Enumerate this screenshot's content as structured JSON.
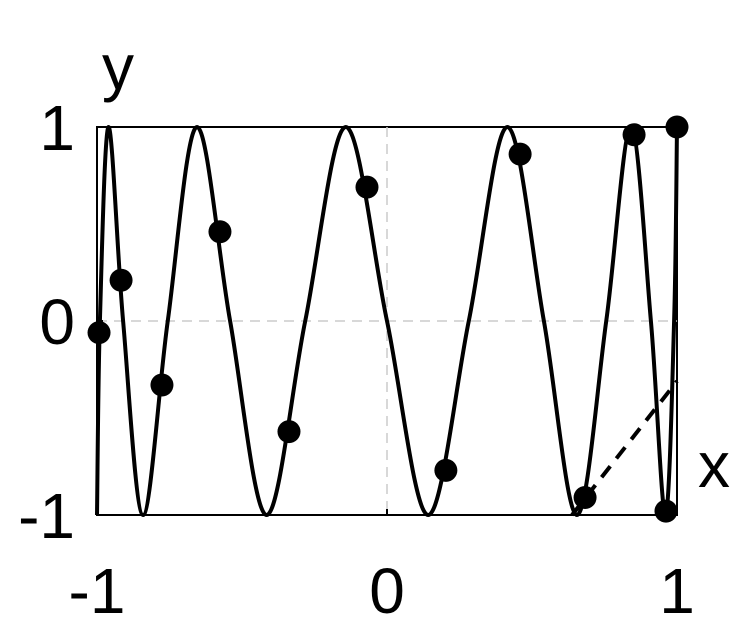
{
  "chart_data": {
    "type": "line",
    "xlabel": "x",
    "ylabel": "y",
    "xlim": [
      -1,
      1
    ],
    "ylim": [
      -1,
      1
    ],
    "xticks": [
      -1,
      0,
      1
    ],
    "yticks": [
      -1,
      0,
      1
    ],
    "grid": true,
    "series": [
      {
        "type": "line",
        "style": "solid",
        "color": "#000000",
        "x": [
          -1,
          -0.99,
          -0.96,
          -0.91,
          -0.841,
          -0.756,
          -0.655,
          -0.541,
          -0.415,
          -0.282,
          -0.142,
          0,
          0.142,
          0.282,
          0.415,
          0.541,
          0.655,
          0.756,
          0.841,
          0.91,
          0.96,
          0.99,
          1
        ],
        "values": [
          -1,
          0,
          1,
          0,
          -1,
          0,
          1,
          0,
          -1,
          0,
          1,
          0,
          -1,
          0,
          1,
          0,
          -1,
          0,
          1,
          0,
          -1,
          0,
          1
        ]
      },
      {
        "type": "line",
        "style": "dashed",
        "color": "#000000",
        "x": [
          0.638,
          1
        ],
        "values": [
          -1,
          -0.31
        ]
      },
      {
        "type": "scatter",
        "color": "#000000",
        "x": [
          -0.993,
          -0.917,
          -0.776,
          -0.576,
          -0.338,
          -0.069,
          0.203,
          0.459,
          0.683,
          0.852,
          0.962,
          1.0
        ],
        "values": [
          -0.06,
          0.21,
          -0.33,
          0.46,
          -0.57,
          0.69,
          -0.77,
          0.86,
          -0.91,
          0.96,
          -0.98,
          1.0
        ]
      }
    ]
  }
}
